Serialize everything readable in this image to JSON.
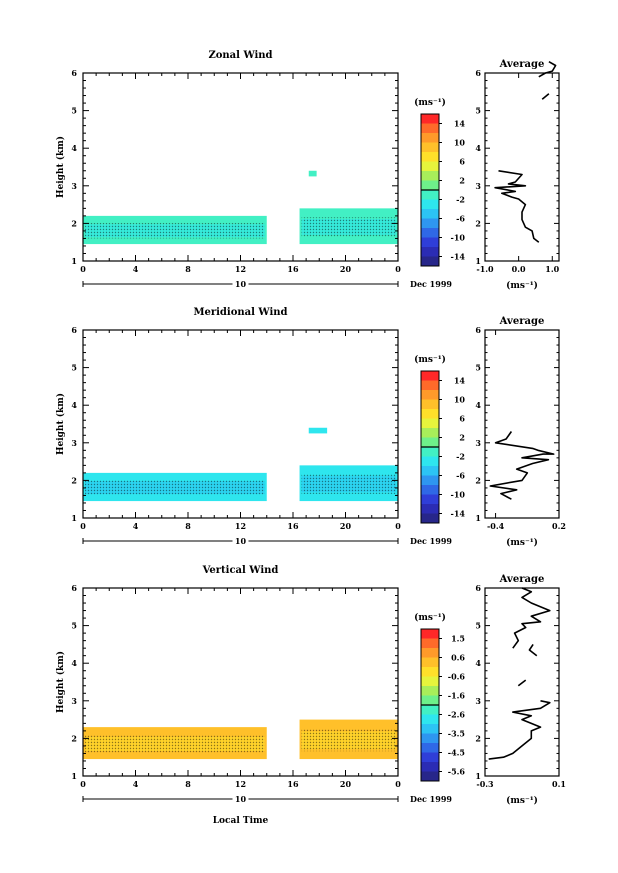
{
  "x_axis": {
    "ticks": [
      "0",
      "4",
      "8",
      "12",
      "16",
      "20",
      "0"
    ],
    "date_day": "10",
    "date_label": "Dec 1999",
    "xlabel": "Local Time"
  },
  "colorbar_unit": "(ms⁻¹)",
  "avg_title": "Average",
  "avg_unit": "(ms⁻¹)",
  "chart_data": [
    {
      "type": "heatmap",
      "title": "Zonal Wind",
      "xlabel": "Local Time",
      "ylabel": "Height (km)",
      "xlim": [
        0,
        24
      ],
      "ylim": [
        1,
        6
      ],
      "y_ticks": [
        "1",
        "2",
        "3",
        "4",
        "5",
        "6"
      ],
      "colorbar_ticks": [
        "14",
        "10",
        "6",
        "2",
        "-2",
        "-6",
        "-10",
        "-14"
      ],
      "colorbar_range": [
        -16,
        16
      ],
      "dominant_value": 0,
      "data_blocks": [
        {
          "x": [
            0,
            14
          ],
          "y": [
            1.45,
            2.2
          ]
        },
        {
          "x": [
            16.5,
            24
          ],
          "y": [
            1.45,
            2.4
          ]
        },
        {
          "x": [
            17.2,
            17.8
          ],
          "y": [
            3.25,
            3.4
          ]
        }
      ],
      "average_profile": {
        "xlim": [
          -1.0,
          1.2
        ],
        "x_ticks": [
          "-1.0",
          "0.0",
          "1.0"
        ],
        "ylim": [
          1,
          6
        ],
        "y_ticks": [
          "1",
          "2",
          "3",
          "4",
          "5",
          "6"
        ],
        "segments": [
          [
            [
              0.6,
              1.5
            ],
            [
              0.45,
              1.6
            ],
            [
              0.4,
              1.8
            ],
            [
              0.2,
              1.9
            ],
            [
              0.1,
              2.1
            ],
            [
              0.1,
              2.3
            ],
            [
              0.2,
              2.5
            ],
            [
              0.0,
              2.65
            ],
            [
              -0.2,
              2.7
            ],
            [
              -0.5,
              2.8
            ],
            [
              -0.1,
              2.85
            ],
            [
              -0.7,
              2.95
            ],
            [
              0.2,
              3.0
            ],
            [
              -0.3,
              3.05
            ],
            [
              -0.1,
              3.1
            ],
            [
              0.1,
              3.3
            ],
            [
              -0.6,
              3.4
            ]
          ],
          [
            [
              0.7,
              5.3
            ],
            [
              0.9,
              5.45
            ]
          ],
          [
            [
              0.6,
              5.9
            ],
            [
              0.8,
              6.0
            ],
            [
              1.0,
              6.05
            ],
            [
              1.1,
              6.2
            ],
            [
              0.9,
              6.3
            ]
          ]
        ]
      }
    },
    {
      "type": "heatmap",
      "title": "Meridional Wind",
      "xlabel": "Local Time",
      "ylabel": "Height (km)",
      "xlim": [
        0,
        24
      ],
      "ylim": [
        1,
        6
      ],
      "y_ticks": [
        "1",
        "2",
        "3",
        "4",
        "5",
        "6"
      ],
      "colorbar_ticks": [
        "14",
        "10",
        "6",
        "2",
        "-2",
        "-6",
        "-10",
        "-14"
      ],
      "colorbar_range": [
        -16,
        16
      ],
      "dominant_value": -2,
      "data_blocks": [
        {
          "x": [
            0,
            14
          ],
          "y": [
            1.45,
            2.2
          ]
        },
        {
          "x": [
            16.5,
            24
          ],
          "y": [
            1.45,
            2.4
          ]
        },
        {
          "x": [
            17.2,
            18.6
          ],
          "y": [
            3.25,
            3.4
          ]
        }
      ],
      "average_profile": {
        "xlim": [
          -0.5,
          0.2
        ],
        "x_ticks": [
          "-0.4",
          "0.2"
        ],
        "ylim": [
          1,
          6
        ],
        "y_ticks": [
          "1",
          "2",
          "3",
          "4",
          "5",
          "6"
        ],
        "segments": [
          [
            [
              -0.25,
              1.5
            ],
            [
              -0.35,
              1.65
            ],
            [
              -0.2,
              1.75
            ],
            [
              -0.45,
              1.85
            ],
            [
              -0.15,
              2.0
            ],
            [
              -0.1,
              2.2
            ],
            [
              -0.2,
              2.3
            ],
            [
              -0.05,
              2.45
            ],
            [
              0.1,
              2.55
            ],
            [
              -0.15,
              2.6
            ],
            [
              0.05,
              2.7
            ],
            [
              0.15,
              2.7
            ],
            [
              0.0,
              2.8
            ],
            [
              -0.05,
              2.85
            ],
            [
              -0.4,
              3.0
            ],
            [
              -0.35,
              3.05
            ],
            [
              -0.3,
              3.1
            ],
            [
              -0.25,
              3.3
            ]
          ]
        ]
      }
    },
    {
      "type": "heatmap",
      "title": "Vertical Wind",
      "xlabel": "Local Time",
      "ylabel": "Height (km)",
      "xlim": [
        0,
        24
      ],
      "ylim": [
        1,
        6
      ],
      "y_ticks": [
        "1",
        "2",
        "3",
        "4",
        "5",
        "6"
      ],
      "colorbar_ticks": [
        "1.5",
        "0.6",
        "-0.6",
        "-1.6",
        "-2.6",
        "-3.5",
        "-4.5",
        "-5.6"
      ],
      "colorbar_range": [
        -6,
        2
      ],
      "dominant_value": 0.2,
      "data_blocks": [
        {
          "x": [
            0,
            14
          ],
          "y": [
            1.45,
            2.3
          ]
        },
        {
          "x": [
            16.5,
            24
          ],
          "y": [
            1.45,
            2.5
          ]
        }
      ],
      "average_profile": {
        "xlim": [
          -0.3,
          0.1
        ],
        "x_ticks": [
          "-0.3",
          "0.1"
        ],
        "ylim": [
          1,
          6
        ],
        "y_ticks": [
          "1",
          "2",
          "3",
          "4",
          "5",
          "6"
        ],
        "segments": [
          [
            [
              -0.28,
              1.45
            ],
            [
              -0.2,
              1.5
            ],
            [
              -0.15,
              1.6
            ],
            [
              -0.1,
              1.8
            ],
            [
              -0.05,
              2.0
            ],
            [
              -0.05,
              2.2
            ],
            [
              0.0,
              2.3
            ],
            [
              -0.05,
              2.4
            ],
            [
              -0.1,
              2.5
            ],
            [
              -0.05,
              2.6
            ],
            [
              -0.15,
              2.7
            ],
            [
              0.0,
              2.8
            ],
            [
              0.05,
              2.95
            ],
            [
              0.0,
              3.0
            ]
          ],
          [
            [
              -0.12,
              3.4
            ],
            [
              -0.08,
              3.55
            ]
          ],
          [
            [
              -0.02,
              4.2
            ],
            [
              -0.06,
              4.35
            ],
            [
              -0.04,
              4.5
            ]
          ],
          [
            [
              -0.15,
              4.4
            ],
            [
              -0.12,
              4.6
            ],
            [
              -0.14,
              4.8
            ],
            [
              -0.08,
              4.95
            ],
            [
              -0.1,
              5.05
            ],
            [
              0.0,
              5.1
            ],
            [
              -0.05,
              5.25
            ],
            [
              0.05,
              5.4
            ],
            [
              -0.05,
              5.6
            ],
            [
              -0.1,
              5.75
            ],
            [
              -0.05,
              5.9
            ],
            [
              -0.1,
              6.0
            ]
          ]
        ]
      }
    }
  ]
}
